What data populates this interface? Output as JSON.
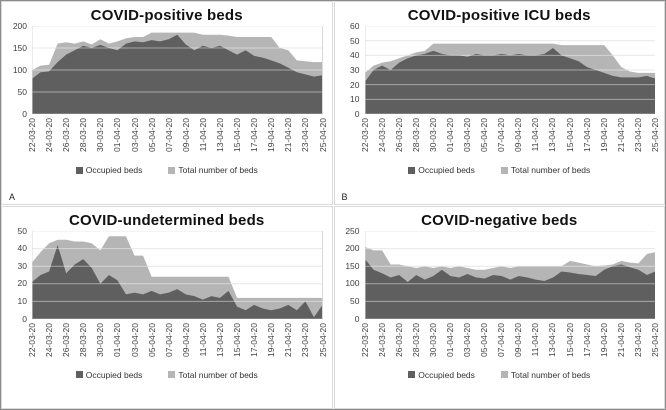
{
  "legend": {
    "items": [
      {
        "label": "Occupied beds",
        "color": "#5f5f5f"
      },
      {
        "label": "Total number of beds",
        "color": "#b5b5b5"
      }
    ]
  },
  "colors": {
    "occupied_area": "#5f5f5f",
    "total_area": "#b5b5b5",
    "gridline": "#d9d9d9",
    "gridline_overlay": "#ffffff",
    "axis_line": "#9e9e9e",
    "panel_border": "#d9d9d9",
    "text": "#3f3f3f"
  },
  "chart_data": [
    {
      "type": "area",
      "title": "COVID-positive beds",
      "corner_label": "A",
      "legend_position": "bottom",
      "grid": true,
      "ylim": [
        0,
        200
      ],
      "yticks": [
        0,
        50,
        100,
        150,
        200
      ],
      "categories": [
        "22-03-20",
        "24-03-20",
        "26-03-20",
        "28-03-20",
        "30-03-20",
        "01-04-20",
        "03-04-20",
        "05-04-20",
        "07-04-20",
        "09-04-20",
        "11-04-20",
        "13-04-20",
        "15-04-20",
        "17-04-20",
        "19-04-20",
        "21-04-20",
        "23-04-20",
        "25-04-20"
      ],
      "x_note": "daily data, labels every 2nd day",
      "series": [
        {
          "name": "Occupied beds",
          "values": [
            80,
            95,
            97,
            118,
            135,
            145,
            155,
            150,
            157,
            150,
            145,
            160,
            165,
            163,
            168,
            165,
            170,
            180,
            158,
            145,
            155,
            150,
            155,
            145,
            135,
            145,
            132,
            128,
            122,
            115,
            105,
            95,
            90,
            85,
            88
          ]
        },
        {
          "name": "Total number of beds",
          "values": [
            100,
            110,
            112,
            160,
            163,
            160,
            165,
            158,
            170,
            160,
            165,
            172,
            175,
            175,
            185,
            185,
            185,
            185,
            185,
            185,
            180,
            180,
            180,
            178,
            175,
            175,
            175,
            175,
            175,
            150,
            145,
            122,
            120,
            118,
            118
          ]
        }
      ]
    },
    {
      "type": "area",
      "title": "COVID-positive ICU beds",
      "corner_label": "B",
      "legend_position": "bottom",
      "grid": true,
      "ylim": [
        0,
        60
      ],
      "yticks": [
        0,
        10,
        20,
        30,
        40,
        50,
        60
      ],
      "categories": [
        "22-03-20",
        "24-03-20",
        "26-03-20",
        "28-03-20",
        "30-03-20",
        "01-04-20",
        "03-04-20",
        "05-04-20",
        "07-04-20",
        "09-04-20",
        "11-04-20",
        "13-04-20",
        "15-04-20",
        "17-04-20",
        "19-04-20",
        "21-04-20",
        "23-04-20",
        "25-04-20"
      ],
      "x_note": "daily data, labels every 2nd day",
      "series": [
        {
          "name": "Occupied beds",
          "values": [
            22,
            30,
            33,
            30,
            35,
            38,
            40,
            41,
            43,
            41,
            40,
            40,
            39,
            41,
            40,
            40,
            41,
            40,
            41,
            40,
            40,
            41,
            45,
            40,
            38,
            36,
            32,
            30,
            28,
            26,
            25,
            25,
            25,
            26,
            24
          ]
        },
        {
          "name": "Total number of beds",
          "values": [
            28,
            33,
            35,
            36,
            38,
            40,
            42,
            43,
            48,
            48,
            48,
            48,
            48,
            48,
            48,
            48,
            48,
            48,
            48,
            48,
            48,
            48,
            48,
            47,
            47,
            47,
            47,
            47,
            47,
            40,
            32,
            29,
            28,
            28,
            28
          ]
        }
      ]
    },
    {
      "type": "area",
      "title": "COVID-undetermined beds",
      "corner_label": "",
      "legend_position": "bottom",
      "grid": true,
      "ylim": [
        0,
        50
      ],
      "yticks": [
        0,
        10,
        20,
        30,
        40,
        50
      ],
      "categories": [
        "22-03-20",
        "24-03-20",
        "26-03-20",
        "28-03-20",
        "30-03-20",
        "01-04-20",
        "03-04-20",
        "05-04-20",
        "07-04-20",
        "09-04-20",
        "11-04-20",
        "13-04-20",
        "15-04-20",
        "17-04-20",
        "19-04-20",
        "21-04-20",
        "23-04-20",
        "25-04-20"
      ],
      "x_note": "daily data, labels every 2nd day",
      "series": [
        {
          "name": "Occupied beds",
          "values": [
            21,
            25,
            27,
            42,
            26,
            31,
            34,
            29,
            20,
            25,
            22,
            14,
            15,
            14,
            16,
            14,
            15,
            17,
            14,
            13,
            11,
            13,
            12,
            16,
            7,
            5,
            8,
            6,
            5,
            6,
            8,
            5,
            10,
            1,
            8
          ]
        },
        {
          "name": "Total number of beds",
          "values": [
            32,
            38,
            43,
            45,
            45,
            44,
            44,
            43,
            39,
            47,
            47,
            47,
            36,
            36,
            24,
            24,
            24,
            24,
            24,
            24,
            24,
            24,
            24,
            24,
            12,
            12,
            12,
            12,
            12,
            12,
            12,
            12,
            12,
            12,
            12
          ]
        }
      ]
    },
    {
      "type": "area",
      "title": "COVID-negative beds",
      "corner_label": "",
      "legend_position": "bottom",
      "grid": true,
      "ylim": [
        0,
        250
      ],
      "yticks": [
        0,
        50,
        100,
        150,
        200,
        250
      ],
      "categories": [
        "22-03-20",
        "24-03-20",
        "26-03-20",
        "28-03-20",
        "30-03-20",
        "01-04-20",
        "03-04-20",
        "05-04-20",
        "07-04-20",
        "09-04-20",
        "11-04-20",
        "13-04-20",
        "15-04-20",
        "17-04-20",
        "19-04-20",
        "21-04-20",
        "23-04-20",
        "25-04-20"
      ],
      "x_note": "daily data, labels every 2nd day",
      "series": [
        {
          "name": "Occupied beds",
          "values": [
            170,
            140,
            130,
            118,
            125,
            105,
            125,
            112,
            122,
            140,
            122,
            118,
            128,
            118,
            115,
            125,
            122,
            112,
            122,
            118,
            112,
            108,
            118,
            135,
            132,
            128,
            125,
            122,
            140,
            150,
            155,
            147,
            140,
            125,
            135
          ]
        },
        {
          "name": "Total number of beds",
          "values": [
            205,
            195,
            195,
            155,
            155,
            150,
            145,
            150,
            145,
            150,
            145,
            150,
            145,
            140,
            140,
            145,
            150,
            145,
            150,
            150,
            150,
            150,
            150,
            150,
            165,
            160,
            155,
            150,
            152,
            155,
            165,
            160,
            158,
            185,
            190
          ]
        }
      ]
    }
  ]
}
